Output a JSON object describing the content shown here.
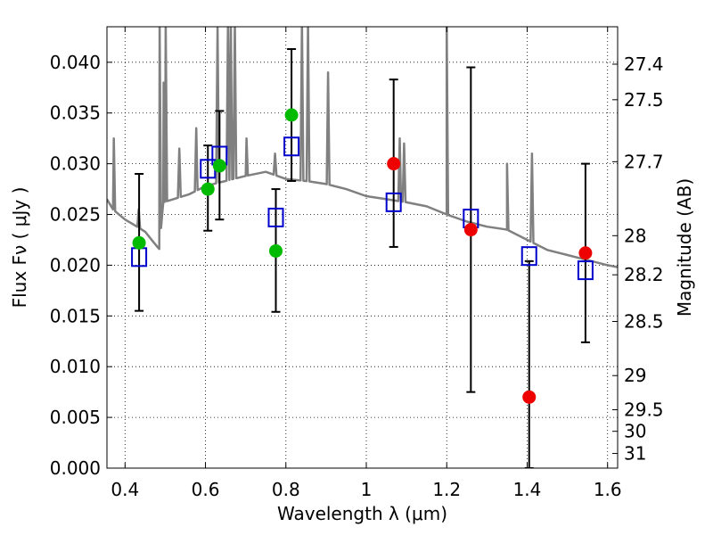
{
  "chart_data": {
    "type": "scatter",
    "xlabel": "Wavelength  λ (μm)",
    "ylabel": "Flux  Fν  ( μJy )",
    "y2label": "Magnitude (AB)",
    "xlim": [
      0.355,
      1.625
    ],
    "ylim": [
      0.0,
      0.0435
    ],
    "grid": true,
    "x_ticks": [
      0.4,
      0.6,
      0.8,
      1.0,
      1.2,
      1.4,
      1.6
    ],
    "x_tick_labels": [
      "0.4",
      "0.6",
      "0.8",
      "1",
      "1.2",
      "1.4",
      "1.6"
    ],
    "y_ticks": [
      0.0,
      0.005,
      0.01,
      0.015,
      0.02,
      0.025,
      0.03,
      0.035,
      0.04
    ],
    "y_tick_labels": [
      "0.000",
      "0.005",
      "0.010",
      "0.015",
      "0.020",
      "0.025",
      "0.030",
      "0.035",
      "0.040"
    ],
    "y2_ticks": [
      "27.4",
      "27.5",
      "27.7",
      "28",
      "28.2",
      "28.5",
      "29",
      "29.5",
      "30",
      "31"
    ],
    "colors": {
      "sed": "#808080",
      "model": "#0000cc",
      "detected": "#00bb00",
      "upper": "#ee0000",
      "errorbar": "#000000",
      "grid": "#000000"
    },
    "series": [
      {
        "marker": "circle-green",
        "color": "#00bb00",
        "points": [
          {
            "x": 0.435,
            "y": 0.0222,
            "yerr_low": 0.0155,
            "yerr_high": 0.029
          },
          {
            "x": 0.606,
            "y": 0.0275,
            "yerr_low": 0.0234,
            "yerr_high": 0.0318
          },
          {
            "x": 0.635,
            "y": 0.0298,
            "yerr_low": 0.0245,
            "yerr_high": 0.0352
          },
          {
            "x": 0.775,
            "y": 0.0214,
            "yerr_low": 0.0154,
            "yerr_high": 0.0275
          },
          {
            "x": 0.814,
            "y": 0.0348,
            "yerr_low": 0.0283,
            "yerr_high": 0.0413
          }
        ]
      },
      {
        "marker": "circle-red",
        "color": "#ee0000",
        "points": [
          {
            "x": 1.068,
            "y": 0.03,
            "yerr_low": 0.0218,
            "yerr_high": 0.0383
          },
          {
            "x": 1.26,
            "y": 0.0235,
            "yerr_low": 0.0075,
            "yerr_high": 0.0395
          },
          {
            "x": 1.405,
            "y": 0.007,
            "yerr_low": 0.0,
            "yerr_high": 0.0204
          },
          {
            "x": 1.545,
            "y": 0.0212,
            "yerr_low": 0.0124,
            "yerr_high": 0.03
          }
        ]
      },
      {
        "marker": "square-blue",
        "color": "#0000cc",
        "points": [
          {
            "x": 0.435,
            "y": 0.0208
          },
          {
            "x": 0.606,
            "y": 0.0295
          },
          {
            "x": 0.635,
            "y": 0.0308
          },
          {
            "x": 0.775,
            "y": 0.0247
          },
          {
            "x": 0.814,
            "y": 0.0317
          },
          {
            "x": 1.068,
            "y": 0.0262
          },
          {
            "x": 1.26,
            "y": 0.0246
          },
          {
            "x": 1.405,
            "y": 0.0209
          },
          {
            "x": 1.545,
            "y": 0.0195
          }
        ]
      },
      {
        "marker": "line-gray",
        "color": "#808080",
        "continuum": [
          [
            0.355,
            0.0265
          ],
          [
            0.37,
            0.0255
          ],
          [
            0.4,
            0.0245
          ],
          [
            0.43,
            0.0238
          ],
          [
            0.45,
            0.0233
          ],
          [
            0.47,
            0.0223
          ],
          [
            0.485,
            0.0216
          ],
          [
            0.495,
            0.0262
          ],
          [
            0.52,
            0.0265
          ],
          [
            0.56,
            0.027
          ],
          [
            0.6,
            0.0278
          ],
          [
            0.65,
            0.0283
          ],
          [
            0.7,
            0.0288
          ],
          [
            0.75,
            0.0292
          ],
          [
            0.8,
            0.0285
          ],
          [
            0.85,
            0.0283
          ],
          [
            0.9,
            0.028
          ],
          [
            0.95,
            0.0275
          ],
          [
            1.0,
            0.0268
          ],
          [
            1.05,
            0.0265
          ],
          [
            1.1,
            0.0262
          ],
          [
            1.15,
            0.0258
          ],
          [
            1.2,
            0.025
          ],
          [
            1.25,
            0.0243
          ],
          [
            1.3,
            0.0238
          ],
          [
            1.35,
            0.0235
          ],
          [
            1.4,
            0.0225
          ],
          [
            1.45,
            0.0215
          ],
          [
            1.5,
            0.021
          ],
          [
            1.55,
            0.0205
          ],
          [
            1.6,
            0.02
          ],
          [
            1.625,
            0.0198
          ]
        ],
        "emission_lines": [
          [
            0.372,
            0.0325
          ],
          [
            0.434,
            0.0255
          ],
          [
            0.486,
            0.044
          ],
          [
            0.496,
            0.038
          ],
          [
            0.501,
            0.044
          ],
          [
            0.535,
            0.0315
          ],
          [
            0.577,
            0.0335
          ],
          [
            0.63,
            0.0435
          ],
          [
            0.656,
            0.044
          ],
          [
            0.663,
            0.044
          ],
          [
            0.673,
            0.044
          ],
          [
            0.702,
            0.0325
          ],
          [
            0.773,
            0.031
          ],
          [
            0.84,
            0.044
          ],
          [
            0.855,
            0.044
          ],
          [
            0.905,
            0.039
          ],
          [
            1.083,
            0.0325
          ],
          [
            1.094,
            0.032
          ],
          [
            1.2,
            0.044
          ],
          [
            1.35,
            0.03
          ],
          [
            1.412,
            0.031
          ]
        ]
      }
    ]
  }
}
